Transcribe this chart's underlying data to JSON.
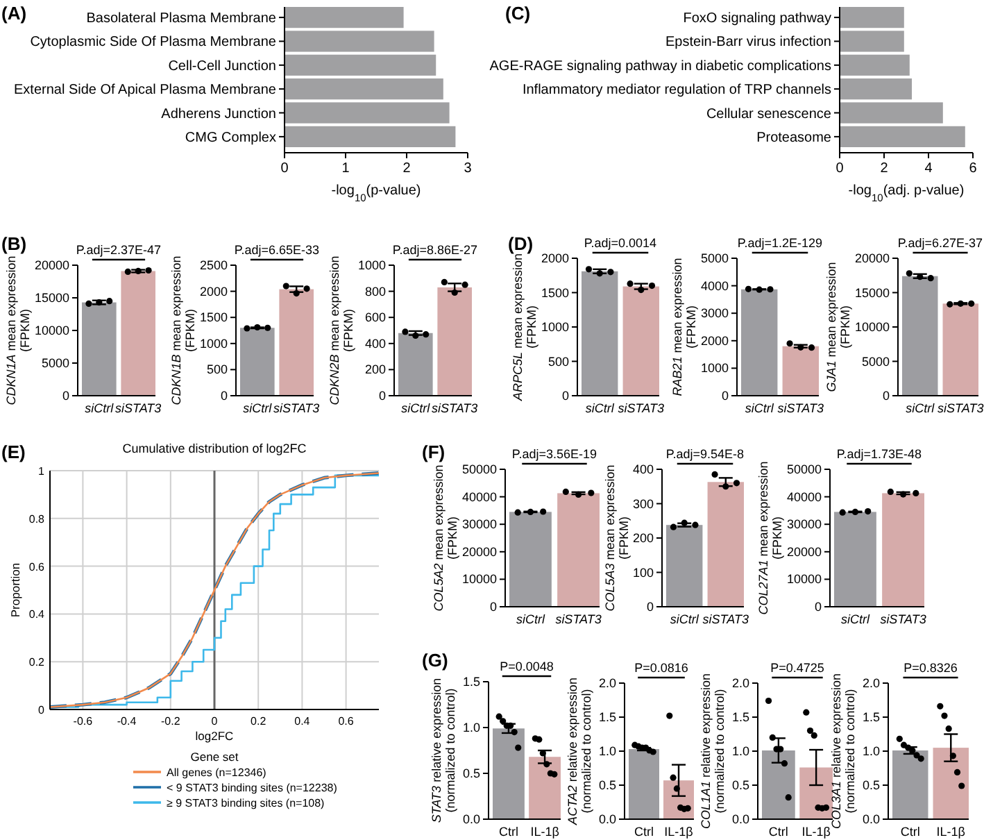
{
  "chart_data": [
    {
      "type": "bar",
      "orientation": "horizontal",
      "categories": [
        "Basolateral Plasma Membrane",
        "Cytoplasmic Side Of Plasma Membrane",
        "Cell-Cell Junction",
        "External Side Of Apical Plasma Membrane",
        "Adherens Junction",
        "CMG Complex"
      ],
      "values": [
        1.95,
        2.45,
        2.48,
        2.6,
        2.7,
        2.8
      ],
      "color": "#a0a0a2",
      "xlim": [
        0,
        3
      ],
      "xticks": [
        0,
        1,
        2,
        3
      ],
      "xlabel": "-log$_{10}$(p-value)",
      "annotations": [
        "(A)"
      ]
    },
    {
      "type": "bar",
      "orientation": "horizontal",
      "categories": [
        "FoxO signaling pathway",
        "Epstein-Barr virus infection",
        "AGE-RAGE signaling pathway in diabetic complications",
        "Inflammatory mediator regulation of TRP channels",
        "Cellular senescence",
        "Proteasome"
      ],
      "values": [
        2.9,
        2.9,
        3.15,
        3.25,
        4.65,
        5.65
      ],
      "color": "#a0a0a2",
      "xlim": [
        0,
        6
      ],
      "xticks": [
        0,
        2,
        4,
        6
      ],
      "xlabel": "-log$_{10}$(adj. p-value)",
      "annotations": [
        "(C)"
      ]
    },
    {
      "type": "bar",
      "categories": [
        "siCtrl",
        "siSTAT3"
      ],
      "ylabel": "CDKN1A mean expression\n(FPKM)",
      "ylim": [
        0,
        20000
      ],
      "yticks": [
        0,
        5000,
        10000,
        15000,
        20000
      ],
      "annotations": [
        "(B)",
        "P.adj=2.37E-47"
      ],
      "series": [
        {
          "type": "bar",
          "values": [
            14300,
            19100
          ],
          "colors": [
            "#9d9da1",
            "#d6abaa"
          ],
          "errors": [
            300,
            200
          ]
        },
        {
          "type": "scatter",
          "x": [
            "siCtrl",
            "siCtrl",
            "siCtrl",
            "siSTAT3",
            "siSTAT3",
            "siSTAT3"
          ],
          "values": [
            14100,
            14300,
            14500,
            19000,
            19100,
            19200
          ],
          "color": "#000000"
        }
      ]
    },
    {
      "type": "bar",
      "categories": [
        "siCtrl",
        "siSTAT3"
      ],
      "ylabel": "CDKN1B mean expression\n(FPKM)",
      "ylim": [
        0,
        2500
      ],
      "yticks": [
        0,
        500,
        1000,
        1500,
        2000,
        2500
      ],
      "annotations": [
        "P.adj=6.65E-33"
      ],
      "series": [
        {
          "type": "bar",
          "values": [
            1300,
            2040
          ],
          "colors": [
            "#9d9da1",
            "#d6abaa"
          ],
          "errors": [
            10,
            55
          ]
        },
        {
          "type": "scatter",
          "x": [
            "siCtrl",
            "siCtrl",
            "siCtrl",
            "siSTAT3",
            "siSTAT3",
            "siSTAT3"
          ],
          "values": [
            1290,
            1310,
            1300,
            2100,
            1960,
            2050
          ],
          "color": "#000000"
        }
      ]
    },
    {
      "type": "bar",
      "categories": [
        "siCtrl",
        "siSTAT3"
      ],
      "ylabel": "CDKN2B mean expression\n(FPKM)",
      "ylim": [
        0,
        1000
      ],
      "yticks": [
        0,
        200,
        400,
        600,
        800,
        1000
      ],
      "annotations": [
        "P.adj=8.86E-27"
      ],
      "series": [
        {
          "type": "bar",
          "values": [
            480,
            830
          ],
          "colors": [
            "#9d9da1",
            "#d6abaa"
          ],
          "errors": [
            15,
            30
          ]
        },
        {
          "type": "scatter",
          "x": [
            "siCtrl",
            "siCtrl",
            "siCtrl",
            "siSTAT3",
            "siSTAT3",
            "siSTAT3"
          ],
          "values": [
            490,
            460,
            470,
            870,
            790,
            850
          ],
          "color": "#000000"
        }
      ]
    },
    {
      "type": "bar",
      "categories": [
        "siCtrl",
        "siSTAT3"
      ],
      "ylabel": "ARPC5L mean expression\n(FPKM)",
      "ylim": [
        0,
        2000
      ],
      "yticks": [
        0,
        500,
        1000,
        1500,
        2000
      ],
      "annotations": [
        "(D)",
        "P.adj=0.0014"
      ],
      "series": [
        {
          "type": "bar",
          "values": [
            1810,
            1590
          ],
          "colors": [
            "#9d9da1",
            "#d6abaa"
          ],
          "errors": [
            30,
            40
          ]
        },
        {
          "type": "scatter",
          "x": [
            "siCtrl",
            "siCtrl",
            "siCtrl",
            "siSTAT3",
            "siSTAT3",
            "siSTAT3"
          ],
          "values": [
            1840,
            1780,
            1800,
            1630,
            1540,
            1600
          ],
          "color": "#000000"
        }
      ]
    },
    {
      "type": "bar",
      "categories": [
        "siCtrl",
        "siSTAT3"
      ],
      "ylabel": "RAB21 mean expression\n(FPKM)",
      "ylim": [
        0,
        5000
      ],
      "yticks": [
        0,
        1000,
        2000,
        3000,
        4000,
        5000
      ],
      "annotations": [
        "P.adj=1.2E-129"
      ],
      "series": [
        {
          "type": "bar",
          "values": [
            3870,
            1800
          ],
          "colors": [
            "#9d9da1",
            "#d6abaa"
          ],
          "errors": [
            10,
            50
          ]
        },
        {
          "type": "scatter",
          "x": [
            "siCtrl",
            "siCtrl",
            "siCtrl",
            "siSTAT3",
            "siSTAT3",
            "siSTAT3"
          ],
          "values": [
            3880,
            3860,
            3870,
            1900,
            1760,
            1750
          ],
          "color": "#000000"
        }
      ]
    },
    {
      "type": "bar",
      "categories": [
        "siCtrl",
        "siSTAT3"
      ],
      "ylabel": "GJA1 mean expression\n(FPKM)",
      "ylim": [
        0,
        20000
      ],
      "yticks": [
        0,
        5000,
        10000,
        15000,
        20000
      ],
      "annotations": [
        "P.adj=6.27E-37"
      ],
      "series": [
        {
          "type": "bar",
          "values": [
            17400,
            13400
          ],
          "colors": [
            "#9d9da1",
            "#d6abaa"
          ],
          "errors": [
            300,
            100
          ]
        },
        {
          "type": "scatter",
          "x": [
            "siCtrl",
            "siCtrl",
            "siCtrl",
            "siSTAT3",
            "siSTAT3",
            "siSTAT3"
          ],
          "values": [
            17800,
            17300,
            17100,
            13300,
            13400,
            13400
          ],
          "color": "#000000"
        }
      ]
    },
    {
      "type": "line",
      "title": "Cumulative distribution of log2FC",
      "xlabel": "log2FC",
      "ylabel": "Proportion",
      "legend_title": "Gene set",
      "legend": "bottom",
      "grid": true,
      "xlim": [
        -0.75,
        0.75
      ],
      "xticks": [
        -0.6,
        -0.4,
        -0.2,
        0,
        0.2,
        0.4,
        0.6
      ],
      "ylim": [
        0,
        1
      ],
      "yticks": [
        0,
        0.2,
        0.4,
        0.6,
        0.8,
        1
      ],
      "ref_lines": [
        {
          "axis": "x",
          "value": 0,
          "color": "#666666"
        }
      ],
      "annotations": [
        "(E)"
      ],
      "series": [
        {
          "name": "All genes (n=12346)",
          "color": "#f28a4c",
          "line_style": "solid",
          "x": [
            -0.75,
            -0.6,
            -0.5,
            -0.4,
            -0.3,
            -0.2,
            -0.15,
            -0.1,
            -0.05,
            0,
            0.05,
            0.1,
            0.15,
            0.2,
            0.25,
            0.3,
            0.4,
            0.5,
            0.6,
            0.75
          ],
          "values": [
            0.01,
            0.02,
            0.03,
            0.05,
            0.09,
            0.15,
            0.22,
            0.3,
            0.4,
            0.5,
            0.6,
            0.68,
            0.76,
            0.82,
            0.87,
            0.9,
            0.94,
            0.97,
            0.98,
            0.99
          ]
        },
        {
          "name": "< 9 STAT3 binding sites (n=12238)",
          "color": "#1f6fa8",
          "line_style": "dashed",
          "x": [
            -0.75,
            -0.6,
            -0.5,
            -0.4,
            -0.3,
            -0.2,
            -0.15,
            -0.1,
            -0.05,
            0,
            0.05,
            0.1,
            0.15,
            0.2,
            0.25,
            0.3,
            0.4,
            0.5,
            0.6,
            0.75
          ],
          "values": [
            0.01,
            0.02,
            0.03,
            0.05,
            0.09,
            0.15,
            0.22,
            0.3,
            0.4,
            0.5,
            0.6,
            0.68,
            0.76,
            0.82,
            0.87,
            0.9,
            0.94,
            0.97,
            0.98,
            0.99
          ]
        },
        {
          "name": "≥ 9 STAT3 binding sites (n=108)",
          "type": "step",
          "color": "#3db8ea",
          "line_style": "solid",
          "x": [
            -0.75,
            -0.62,
            -0.4,
            -0.26,
            -0.2,
            -0.15,
            -0.1,
            -0.05,
            0,
            0.03,
            0.05,
            0.08,
            0.12,
            0.18,
            0.22,
            0.25,
            0.27,
            0.3,
            0.35,
            0.45,
            0.55,
            0.75
          ],
          "values": [
            0.01,
            0.02,
            0.03,
            0.05,
            0.12,
            0.16,
            0.2,
            0.25,
            0.3,
            0.37,
            0.42,
            0.48,
            0.53,
            0.6,
            0.67,
            0.75,
            0.82,
            0.86,
            0.9,
            0.93,
            0.98,
            0.99
          ]
        }
      ]
    },
    {
      "type": "bar",
      "categories": [
        "siCtrl",
        "siSTAT3"
      ],
      "ylabel": "COL5A2 mean expression\n(FPKM)",
      "ylim": [
        0,
        50000
      ],
      "yticks": [
        0,
        10000,
        20000,
        30000,
        40000,
        50000
      ],
      "annotations": [
        "(F)",
        "P.adj=3.56E-19"
      ],
      "series": [
        {
          "type": "bar",
          "values": [
            34500,
            41300
          ],
          "colors": [
            "#9d9da1",
            "#d6abaa"
          ],
          "errors": [
            150,
            400
          ]
        },
        {
          "type": "scatter",
          "x": [
            "siCtrl",
            "siCtrl",
            "siCtrl",
            "siSTAT3",
            "siSTAT3",
            "siSTAT3"
          ],
          "values": [
            34300,
            34500,
            34600,
            41800,
            40800,
            41400
          ],
          "color": "#000000"
        }
      ]
    },
    {
      "type": "bar",
      "categories": [
        "siCtrl",
        "siSTAT3"
      ],
      "ylabel": "COL5A3 mean expression\n(FPKM)",
      "ylim": [
        0,
        400
      ],
      "yticks": [
        0,
        100,
        200,
        300,
        400
      ],
      "annotations": [
        "P.adj=9.54E-8"
      ],
      "series": [
        {
          "type": "bar",
          "values": [
            238,
            363
          ],
          "colors": [
            "#9d9da1",
            "#d6abaa"
          ],
          "errors": [
            5,
            12
          ]
        },
        {
          "type": "scatter",
          "x": [
            "siCtrl",
            "siCtrl",
            "siCtrl",
            "siSTAT3",
            "siSTAT3",
            "siSTAT3"
          ],
          "values": [
            232,
            244,
            238,
            385,
            350,
            360
          ],
          "color": "#000000"
        }
      ]
    },
    {
      "type": "bar",
      "categories": [
        "siCtrl",
        "siSTAT3"
      ],
      "ylabel": "COL27A1 mean expression\n(FPKM)",
      "ylim": [
        0,
        50000
      ],
      "yticks": [
        0,
        10000,
        20000,
        30000,
        40000,
        50000
      ],
      "annotations": [
        "P.adj=1.73E-48"
      ],
      "series": [
        {
          "type": "bar",
          "values": [
            34500,
            41300
          ],
          "colors": [
            "#9d9da1",
            "#d6abaa"
          ],
          "errors": [
            150,
            400
          ]
        },
        {
          "type": "scatter",
          "x": [
            "siCtrl",
            "siCtrl",
            "siCtrl",
            "siSTAT3",
            "siSTAT3",
            "siSTAT3"
          ],
          "values": [
            34300,
            34500,
            34700,
            41800,
            40900,
            41300
          ],
          "color": "#000000"
        }
      ]
    },
    {
      "type": "bar",
      "categories": [
        "Ctrl",
        "IL-1β"
      ],
      "ylabel": "STAT3 relative expression\n(normalized to control)",
      "ylim": [
        0,
        1.5
      ],
      "yticks": [
        {
          "value": 0,
          "label": "0.0"
        },
        0.5,
        {
          "value": 1,
          "label": "1.0"
        },
        1.5
      ],
      "annotations": [
        "(G)",
        "P=0.0048"
      ],
      "series": [
        {
          "type": "bar",
          "values": [
            0.99,
            0.68
          ],
          "colors": [
            "#9d9da1",
            "#d6abaa"
          ],
          "errors": [
            0.05,
            0.07
          ]
        },
        {
          "type": "scatter",
          "x": [
            "Ctrl",
            "Ctrl",
            "Ctrl",
            "Ctrl",
            "Ctrl",
            "Ctrl",
            "IL-1β",
            "IL-1β",
            "IL-1β",
            "IL-1β",
            "IL-1β",
            "IL-1β"
          ],
          "values": [
            1.12,
            1.07,
            1.02,
            1.02,
            0.95,
            0.78,
            0.88,
            0.87,
            0.72,
            0.6,
            0.5,
            0.49
          ],
          "color": "#000000"
        }
      ]
    },
    {
      "type": "bar",
      "categories": [
        "Ctrl",
        "IL-1β"
      ],
      "ylabel": "ACTA2 relative expression\n(normalized to control)",
      "ylim": [
        0,
        2
      ],
      "yticks": [
        {
          "value": 0,
          "label": "0.0"
        },
        0.5,
        {
          "value": 1,
          "label": "1.0"
        },
        1.5,
        {
          "value": 2,
          "label": "2.0"
        }
      ],
      "annotations": [
        "P=0.0816"
      ],
      "series": [
        {
          "type": "bar",
          "values": [
            1.03,
            0.57
          ],
          "colors": [
            "#9d9da1",
            "#d6abaa"
          ],
          "errors": [
            0.02,
            0.23
          ]
        },
        {
          "type": "scatter",
          "x": [
            "Ctrl",
            "Ctrl",
            "Ctrl",
            "Ctrl",
            "Ctrl",
            "Ctrl",
            "IL-1β",
            "IL-1β",
            "IL-1β",
            "IL-1β",
            "IL-1β",
            "IL-1β"
          ],
          "values": [
            1.09,
            1.07,
            1.05,
            1.05,
            1.01,
            0.99,
            1.52,
            0.61,
            0.45,
            0.17,
            0.15,
            0.16
          ],
          "color": "#000000"
        }
      ]
    },
    {
      "type": "bar",
      "categories": [
        "Ctrl",
        "IL-1β"
      ],
      "ylabel": "COL1A1 relative expression\n(normalized to control)",
      "ylim": [
        0,
        2
      ],
      "yticks": [
        {
          "value": 0,
          "label": "0.0"
        },
        0.5,
        {
          "value": 1,
          "label": "1.0"
        },
        1.5,
        {
          "value": 2,
          "label": "2.0"
        }
      ],
      "annotations": [
        "P=0.4725"
      ],
      "series": [
        {
          "type": "bar",
          "values": [
            1.01,
            0.76
          ],
          "colors": [
            "#9d9da1",
            "#d6abaa"
          ],
          "errors": [
            0.18,
            0.26
          ]
        },
        {
          "type": "scatter",
          "x": [
            "Ctrl",
            "Ctrl",
            "Ctrl",
            "Ctrl",
            "Ctrl",
            "Ctrl",
            "IL-1β",
            "IL-1β",
            "IL-1β",
            "IL-1β",
            "IL-1β",
            "IL-1β"
          ],
          "values": [
            1.74,
            1.2,
            1.03,
            1.03,
            0.82,
            0.32,
            1.57,
            1.3,
            1.23,
            0.17,
            0.16,
            0.17
          ],
          "color": "#000000"
        }
      ]
    },
    {
      "type": "bar",
      "categories": [
        "Ctrl",
        "IL-1β"
      ],
      "ylabel": "COL3A1 relative expression\n(normalized to control)",
      "ylim": [
        0,
        2
      ],
      "yticks": [
        {
          "value": 0,
          "label": "0.0"
        },
        0.5,
        {
          "value": 1,
          "label": "1.0"
        },
        1.5,
        {
          "value": 2,
          "label": "2.0"
        }
      ],
      "annotations": [
        "P=0.8326"
      ],
      "series": [
        {
          "type": "bar",
          "values": [
            1.01,
            1.05
          ],
          "colors": [
            "#9d9da1",
            "#d6abaa"
          ],
          "errors": [
            0.05,
            0.2
          ]
        },
        {
          "type": "scatter",
          "x": [
            "Ctrl",
            "Ctrl",
            "Ctrl",
            "Ctrl",
            "Ctrl",
            "Ctrl",
            "IL-1β",
            "IL-1β",
            "IL-1β",
            "IL-1β",
            "IL-1β",
            "IL-1β"
          ],
          "values": [
            1.18,
            1.09,
            1.05,
            1.01,
            0.94,
            0.89,
            1.66,
            1.52,
            1.33,
            0.93,
            0.69,
            0.49
          ],
          "color": "#000000"
        }
      ]
    }
  ]
}
